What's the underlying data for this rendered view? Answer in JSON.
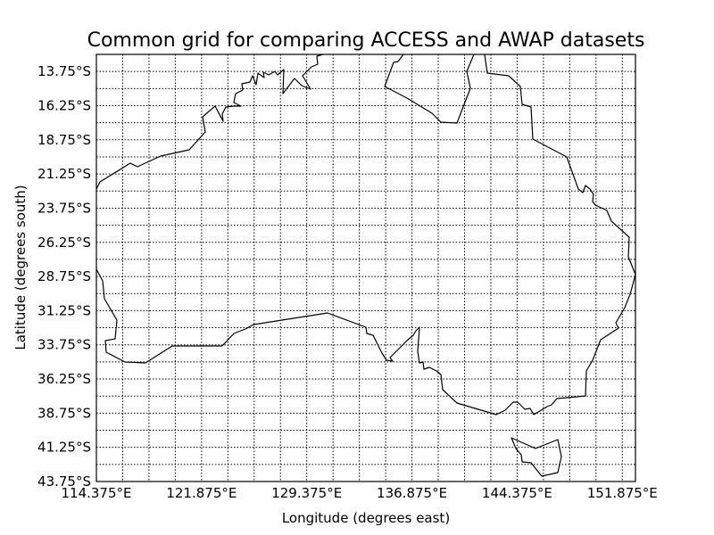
{
  "title": "Common grid for comparing ACCESS and AWAP datasets",
  "xlabel": "Longitude (degrees east)",
  "ylabel": "Latitude (degrees south)",
  "x_tick_labels": [
    "114.375°E",
    "121.875°E",
    "129.375°E",
    "136.875°E",
    "144.375°E",
    "151.875°E"
  ],
  "y_tick_labels": [
    "13.75°S",
    "16.25°S",
    "18.75°S",
    "21.25°S",
    "23.75°S",
    "26.25°S",
    "28.75°S",
    "31.25°S",
    "33.75°S",
    "36.25°S",
    "38.75°S",
    "41.25°S",
    "43.75°S"
  ],
  "grid": {
    "lon_step": 1.875,
    "lat_step": 1.25,
    "style": "dotted",
    "color": "#000000"
  },
  "extent": {
    "lon_min": 114.375,
    "lon_max": 152.8125,
    "lat_min": -43.75,
    "lat_max": -12.5
  }
}
